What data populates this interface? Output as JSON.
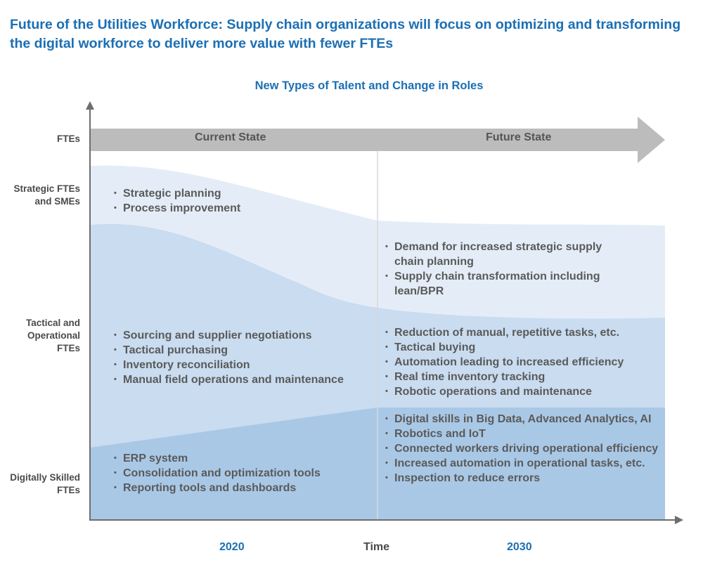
{
  "title": "Future of the Utilities Workforce: Supply chain organizations will focus on optimizing and transforming the digital workforce to deliver more value with fewer FTEs",
  "diagram_title": "New Types of Talent and Change in Roles",
  "colors": {
    "title": "#1b6fb4",
    "band_strategic": "#e4edf7",
    "band_tactical": "#c9dcf0",
    "band_digital": "#a9c8e6",
    "arrow": "#bcbcbc"
  },
  "y_axis": {
    "fte": "FTEs",
    "strategic": "Strategic FTEs and SMEs",
    "tactical": "Tactical and Operational FTEs",
    "digital": "Digitally Skilled FTEs"
  },
  "states": {
    "current": "Current State",
    "future": "Future State"
  },
  "x_axis": {
    "left_year": "2020",
    "middle": "Time",
    "right_year": "2030"
  },
  "current": {
    "strategic": [
      "Strategic planning",
      "Process improvement"
    ],
    "tactical": [
      "Sourcing and supplier negotiations",
      "Tactical purchasing",
      "Inventory reconciliation",
      "Manual field operations and maintenance"
    ],
    "digital": [
      "ERP system",
      "Consolidation and optimization tools",
      "Reporting tools and dashboards"
    ]
  },
  "future": {
    "strategic": [
      "Demand for increased strategic supply chain planning",
      "Supply chain transformation including lean/BPR"
    ],
    "tactical": [
      "Reduction of manual, repetitive tasks, etc.",
      "Tactical buying",
      "Automation leading to increased efficiency",
      "Real time inventory tracking",
      "Robotic operations and maintenance"
    ],
    "digital": [
      "Digital skills in Big Data, Advanced Analytics, AI",
      "Robotics and IoT",
      "Connected workers driving operational efficiency",
      "Increased automation in operational tasks, etc.",
      "Inspection to reduce errors"
    ]
  }
}
